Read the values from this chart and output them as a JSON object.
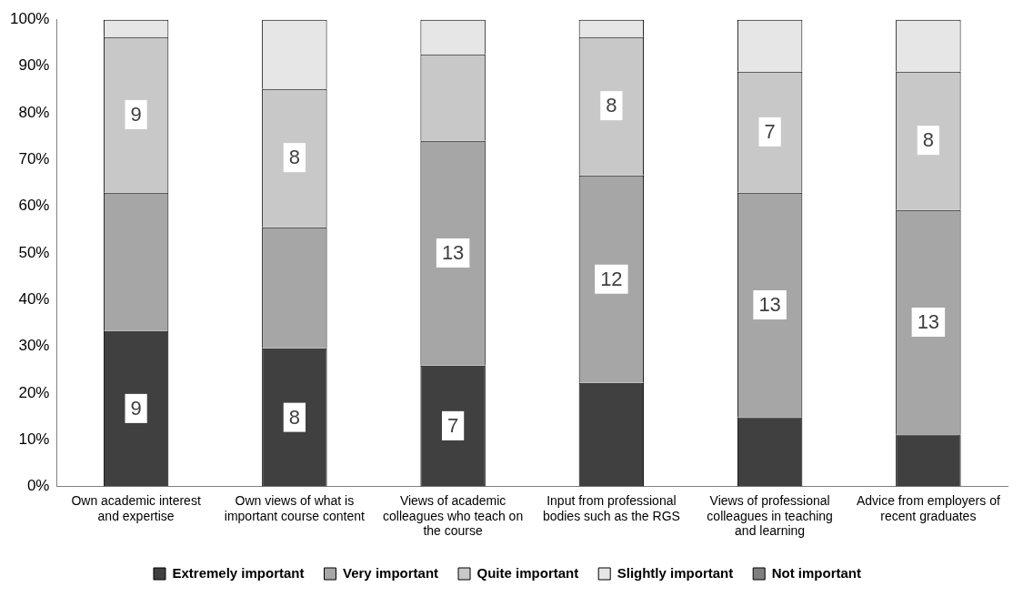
{
  "chart_data": {
    "type": "bar",
    "stacked": true,
    "categories": [
      "Own academic interest and expertise",
      "Own views of what is important course content",
      "Views of academic colleagues who teach on the course",
      "Input from professional bodies such as the RGS",
      "Views of professional colleagues in teaching and learning",
      "Advice from employers of recent graduates"
    ],
    "series": [
      {
        "name": "Extremely important",
        "color": "#404040",
        "values": [
          33.3,
          29.6,
          25.9,
          22.2,
          14.8,
          11.1
        ]
      },
      {
        "name": "Very important",
        "color": "#a6a6a6",
        "values": [
          29.6,
          25.9,
          48.1,
          44.4,
          48.1,
          48.1
        ]
      },
      {
        "name": "Quite important",
        "color": "#c8c8c8",
        "values": [
          33.3,
          29.6,
          18.5,
          29.6,
          25.9,
          29.6
        ]
      },
      {
        "name": "Slightly important",
        "color": "#e6e6e6",
        "values": [
          3.7,
          14.8,
          7.4,
          3.7,
          11.1,
          11.1
        ]
      },
      {
        "name": "Not important",
        "color": "#7f7f7f",
        "values": [
          0,
          0,
          0,
          0,
          0,
          0
        ]
      }
    ],
    "annotations": [
      {
        "text": "9",
        "x": "Own academic interest and expertise",
        "y": 16.7
      },
      {
        "text": "9",
        "x": "Own academic interest and expertise",
        "y": 79.6
      },
      {
        "text": "8",
        "x": "Own views of what is important course content",
        "y": 14.8
      },
      {
        "text": "8",
        "x": "Own views of what is important course content",
        "y": 70.4
      },
      {
        "text": "7",
        "x": "Views of academic colleagues who teach on the course",
        "y": 13
      },
      {
        "text": "13",
        "x": "Views of academic colleagues who teach on the course",
        "y": 50
      },
      {
        "text": "12",
        "x": "Input from professional bodies such as the RGS",
        "y": 44.4
      },
      {
        "text": "8",
        "x": "Input from professional bodies such as the RGS",
        "y": 81.5
      },
      {
        "text": "13",
        "x": "Views of professional colleagues in teaching and learning",
        "y": 38.9
      },
      {
        "text": "7",
        "x": "Views of professional colleagues in teaching and learning",
        "y": 75.9
      },
      {
        "text": "13",
        "x": "Advice from employers of recent graduates",
        "y": 35.2
      },
      {
        "text": "8",
        "x": "Advice from employers of recent graduates",
        "y": 74.1
      }
    ],
    "ylim": [
      0,
      100
    ],
    "yticks": [
      {
        "value": 0,
        "label": "0%"
      },
      {
        "value": 10,
        "label": "10%"
      },
      {
        "value": 20,
        "label": "20%"
      },
      {
        "value": 30,
        "label": "30%"
      },
      {
        "value": 40,
        "label": "40%"
      },
      {
        "value": 50,
        "label": "50%"
      },
      {
        "value": 60,
        "label": "60%"
      },
      {
        "value": 70,
        "label": "70%"
      },
      {
        "value": 80,
        "label": "80%"
      },
      {
        "value": 90,
        "label": "90%"
      },
      {
        "value": 100,
        "label": "100%"
      }
    ],
    "grid": false,
    "legend": "bottom"
  }
}
